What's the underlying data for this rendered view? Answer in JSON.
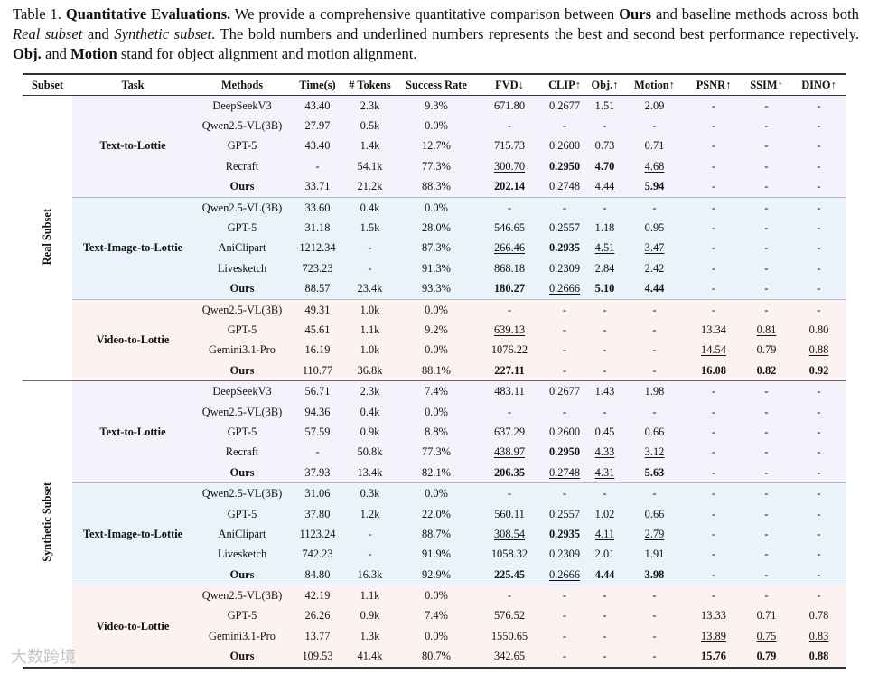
{
  "caption": [
    {
      "text": "Table 1. "
    },
    {
      "text": "Quantitative Evaluations.",
      "style": "bold"
    },
    {
      "text": " We provide a comprehensive quantitative comparison between "
    },
    {
      "text": "Ours",
      "style": "bold"
    },
    {
      "text": " and baseline methods across both "
    },
    {
      "text": "Real subset",
      "style": "italic"
    },
    {
      "text": " and "
    },
    {
      "text": "Synthetic subset",
      "style": "italic"
    },
    {
      "text": ". The bold numbers and underlined numbers represents the best and second best performance repectively. "
    },
    {
      "text": "Obj.",
      "style": "bold"
    },
    {
      "text": " and "
    },
    {
      "text": "Motion",
      "style": "bold"
    },
    {
      "text": " stand for object alignment and motion alignment."
    }
  ],
  "table": {
    "columns": [
      "Subset",
      "Task",
      "Methods",
      "Time(s)",
      "# Tokens",
      "Success Rate",
      "FVD↓",
      "CLIP↑",
      "Obj.↑",
      "Motion↑",
      "PSNR↑",
      "SSIM↑",
      "DINO↑"
    ],
    "subsets": [
      {
        "label": "Real Subset",
        "tasks": [
          {
            "name": "Text-to-Lottie",
            "color": "#f4f3fb",
            "rows": [
              {
                "cells": [
                  "DeepSeekV3",
                  "43.40",
                  "2.3k",
                  "9.3%",
                  "671.80",
                  "0.2677",
                  "1.51",
                  "2.09",
                  "-",
                  "-",
                  "-"
                ]
              },
              {
                "cells": [
                  "Qwen2.5-VL(3B)",
                  "27.97",
                  "0.5k",
                  "0.0%",
                  "-",
                  "-",
                  "-",
                  "-",
                  "-",
                  "-",
                  "-"
                ]
              },
              {
                "cells": [
                  "GPT-5",
                  "43.40",
                  "1.4k",
                  "12.7%",
                  "715.73",
                  "0.2600",
                  "0.73",
                  "0.71",
                  "-",
                  "-",
                  "-"
                ]
              },
              {
                "cells": [
                  "Recraft",
                  "-",
                  "54.1k",
                  "77.3%",
                  "300.70",
                  "0.2950",
                  "4.70",
                  "4.68",
                  "-",
                  "-",
                  "-"
                ],
                "bold": [
                  5,
                  6
                ],
                "underline": [
                  4,
                  7
                ]
              },
              {
                "cells": [
                  "Ours",
                  "33.71",
                  "21.2k",
                  "88.3%",
                  "202.14",
                  "0.2748",
                  "4.44",
                  "5.94",
                  "-",
                  "-",
                  "-"
                ],
                "bold": [
                  0,
                  4,
                  7
                ],
                "underline": [
                  5,
                  6
                ]
              }
            ]
          },
          {
            "name": "Text-Image-to-Lottie",
            "color": "#eaf3fb",
            "rows": [
              {
                "cells": [
                  "Qwen2.5-VL(3B)",
                  "33.60",
                  "0.4k",
                  "0.0%",
                  "-",
                  "-",
                  "-",
                  "-",
                  "-",
                  "-",
                  "-"
                ]
              },
              {
                "cells": [
                  "GPT-5",
                  "31.18",
                  "1.5k",
                  "28.0%",
                  "546.65",
                  "0.2557",
                  "1.18",
                  "0.95",
                  "-",
                  "-",
                  "-"
                ]
              },
              {
                "cells": [
                  "AniClipart",
                  "1212.34",
                  "-",
                  "87.3%",
                  "266.46",
                  "0.2935",
                  "4.51",
                  "3.47",
                  "-",
                  "-",
                  "-"
                ],
                "bold": [
                  5
                ],
                "underline": [
                  4,
                  6,
                  7
                ]
              },
              {
                "cells": [
                  "Livesketch",
                  "723.23",
                  "-",
                  "91.3%",
                  "868.18",
                  "0.2309",
                  "2.84",
                  "2.42",
                  "-",
                  "-",
                  "-"
                ]
              },
              {
                "cells": [
                  "Ours",
                  "88.57",
                  "23.4k",
                  "93.3%",
                  "180.27",
                  "0.2666",
                  "5.10",
                  "4.44",
                  "-",
                  "-",
                  "-"
                ],
                "bold": [
                  0,
                  4,
                  6,
                  7
                ],
                "underline": [
                  5
                ]
              }
            ]
          },
          {
            "name": "Video-to-Lottie",
            "color": "#fcf2f2",
            "rows": [
              {
                "cells": [
                  "Qwen2.5-VL(3B)",
                  "49.31",
                  "1.0k",
                  "0.0%",
                  "-",
                  "-",
                  "-",
                  "-",
                  "-",
                  "-",
                  "-"
                ]
              },
              {
                "cells": [
                  "GPT-5",
                  "45.61",
                  "1.1k",
                  "9.2%",
                  "639.13",
                  "-",
                  "-",
                  "-",
                  "13.34",
                  "0.81",
                  "0.80"
                ],
                "underline": [
                  4,
                  9
                ]
              },
              {
                "cells": [
                  "Gemini3.1-Pro",
                  "16.19",
                  "1.0k",
                  "0.0%",
                  "1076.22",
                  "-",
                  "-",
                  "-",
                  "14.54",
                  "0.79",
                  "0.88"
                ],
                "underline": [
                  8,
                  10
                ]
              },
              {
                "cells": [
                  "Ours",
                  "110.77",
                  "36.8k",
                  "88.1%",
                  "227.11",
                  "-",
                  "-",
                  "-",
                  "16.08",
                  "0.82",
                  "0.92"
                ],
                "bold": [
                  0,
                  4,
                  8,
                  9,
                  10
                ]
              }
            ]
          }
        ]
      },
      {
        "label": "Synthetic Subset",
        "tasks": [
          {
            "name": "Text-to-Lottie",
            "color": "#f4f3fb",
            "rows": [
              {
                "cells": [
                  "DeepSeekV3",
                  "56.71",
                  "2.3k",
                  "7.4%",
                  "483.11",
                  "0.2677",
                  "1.43",
                  "1.98",
                  "-",
                  "-",
                  "-"
                ]
              },
              {
                "cells": [
                  "Qwen2.5-VL(3B)",
                  "94.36",
                  "0.4k",
                  "0.0%",
                  "-",
                  "-",
                  "-",
                  "-",
                  "-",
                  "-",
                  "-"
                ]
              },
              {
                "cells": [
                  "GPT-5",
                  "57.59",
                  "0.9k",
                  "8.8%",
                  "637.29",
                  "0.2600",
                  "0.45",
                  "0.66",
                  "-",
                  "-",
                  "-"
                ]
              },
              {
                "cells": [
                  "Recraft",
                  "-",
                  "50.8k",
                  "77.3%",
                  "438.97",
                  "0.2950",
                  "4.33",
                  "3.12",
                  "-",
                  "-",
                  "-"
                ],
                "bold": [
                  5
                ],
                "underline": [
                  4,
                  6,
                  7
                ]
              },
              {
                "cells": [
                  "Ours",
                  "37.93",
                  "13.4k",
                  "82.1%",
                  "206.35",
                  "0.2748",
                  "4.31",
                  "5.63",
                  "-",
                  "-",
                  "-"
                ],
                "bold": [
                  0,
                  4,
                  7
                ],
                "underline": [
                  5,
                  6
                ]
              }
            ]
          },
          {
            "name": "Text-Image-to-Lottie",
            "color": "#eaf3fb",
            "rows": [
              {
                "cells": [
                  "Qwen2.5-VL(3B)",
                  "31.06",
                  "0.3k",
                  "0.0%",
                  "-",
                  "-",
                  "-",
                  "-",
                  "-",
                  "-",
                  "-"
                ]
              },
              {
                "cells": [
                  "GPT-5",
                  "37.80",
                  "1.2k",
                  "22.0%",
                  "560.11",
                  "0.2557",
                  "1.02",
                  "0.66",
                  "-",
                  "-",
                  "-"
                ]
              },
              {
                "cells": [
                  "AniClipart",
                  "1123.24",
                  "-",
                  "88.7%",
                  "308.54",
                  "0.2935",
                  "4.11",
                  "2.79",
                  "-",
                  "-",
                  "-"
                ],
                "bold": [
                  5
                ],
                "underline": [
                  4,
                  6,
                  7
                ]
              },
              {
                "cells": [
                  "Livesketch",
                  "742.23",
                  "-",
                  "91.9%",
                  "1058.32",
                  "0.2309",
                  "2.01",
                  "1.91",
                  "-",
                  "-",
                  "-"
                ]
              },
              {
                "cells": [
                  "Ours",
                  "84.80",
                  "16.3k",
                  "92.9%",
                  "225.45",
                  "0.2666",
                  "4.44",
                  "3.98",
                  "-",
                  "-",
                  "-"
                ],
                "bold": [
                  0,
                  4,
                  6,
                  7
                ],
                "underline": [
                  5
                ]
              }
            ]
          },
          {
            "name": "Video-to-Lottie",
            "color": "#fcf2f2",
            "rows": [
              {
                "cells": [
                  "Qwen2.5-VL(3B)",
                  "42.19",
                  "1.1k",
                  "0.0%",
                  "-",
                  "-",
                  "-",
                  "-",
                  "-",
                  "-",
                  "-"
                ]
              },
              {
                "cells": [
                  "GPT-5",
                  "26.26",
                  "0.9k",
                  "7.4%",
                  "576.52",
                  "-",
                  "-",
                  "-",
                  "13.33",
                  "0.71",
                  "0.78"
                ]
              },
              {
                "cells": [
                  "Gemini3.1-Pro",
                  "13.77",
                  "1.3k",
                  "0.0%",
                  "1550.65",
                  "-",
                  "-",
                  "-",
                  "13.89",
                  "0.75",
                  "0.83"
                ],
                "underline": [
                  8,
                  9,
                  10
                ]
              },
              {
                "cells": [
                  "Ours",
                  "109.53",
                  "41.4k",
                  "80.7%",
                  "342.65",
                  "-",
                  "-",
                  "-",
                  "15.76",
                  "0.79",
                  "0.88"
                ],
                "bold": [
                  0,
                  8,
                  9,
                  10
                ]
              }
            ]
          }
        ]
      }
    ]
  },
  "watermark": "大数跨境"
}
